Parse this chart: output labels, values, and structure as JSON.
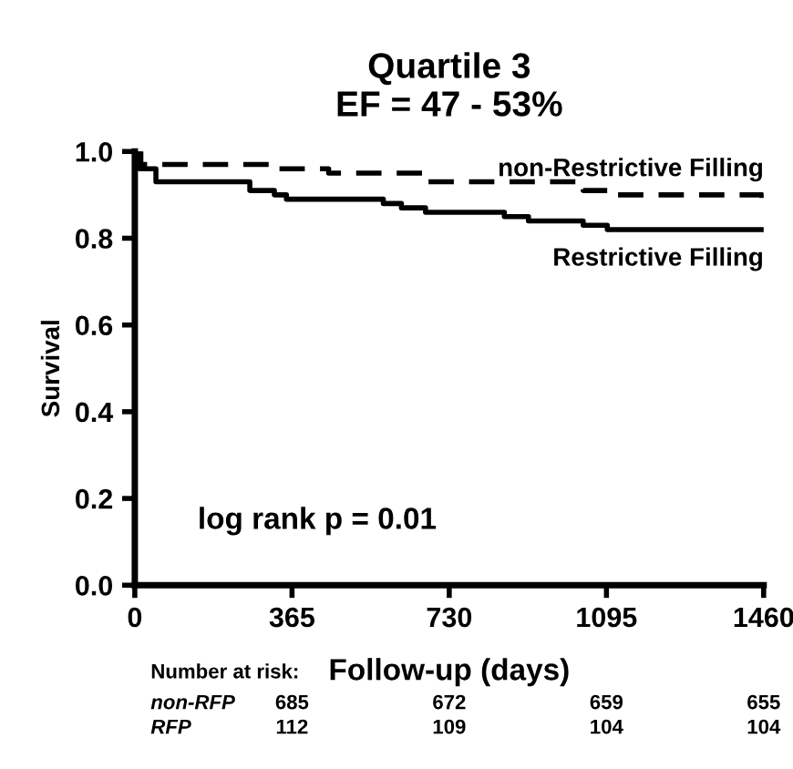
{
  "chart_data": {
    "type": "step",
    "title": "Quartile 3\nEF = 47 - 53%",
    "xlabel": "Follow-up (days)",
    "ylabel": "Survival",
    "xlim": [
      0,
      1460
    ],
    "xticks": [
      0,
      365,
      730,
      1095,
      1460
    ],
    "ylim": [
      0,
      1.0
    ],
    "yticks": [
      {
        "value": 0,
        "label": "0.0"
      },
      0.2,
      0.4,
      0.6,
      0.8,
      {
        "value": 1,
        "label": "1.0"
      }
    ],
    "grid": false,
    "legend": false,
    "marker": "none",
    "series": [
      {
        "name": "non-Restrictive Filling",
        "color": "#000000",
        "line_style": "dashed",
        "x": [
          0,
          14,
          324,
          450,
          675,
          703,
          1041,
          1097,
          1456,
          1460
        ],
        "values": [
          1.0,
          0.97,
          0.96,
          0.95,
          0.93,
          0.93,
          0.91,
          0.9,
          0.89,
          0.89
        ]
      },
      {
        "name": "Restrictive Filling",
        "color": "#000000",
        "line_style": "solid",
        "x": [
          0,
          11,
          49,
          148,
          267,
          324,
          352,
          577,
          619,
          675,
          774,
          858,
          914,
          1041,
          1097,
          1460
        ],
        "values": [
          1.0,
          0.96,
          0.93,
          0.93,
          0.91,
          0.9,
          0.89,
          0.88,
          0.87,
          0.86,
          0.86,
          0.85,
          0.84,
          0.83,
          0.82,
          0.82
        ]
      }
    ],
    "annotations": [
      "log rank p = 0.01",
      "Number at risk:",
      "non-RFP",
      "685",
      "672",
      "659",
      "655",
      "RFP",
      "112",
      "109",
      "104",
      "104"
    ]
  }
}
